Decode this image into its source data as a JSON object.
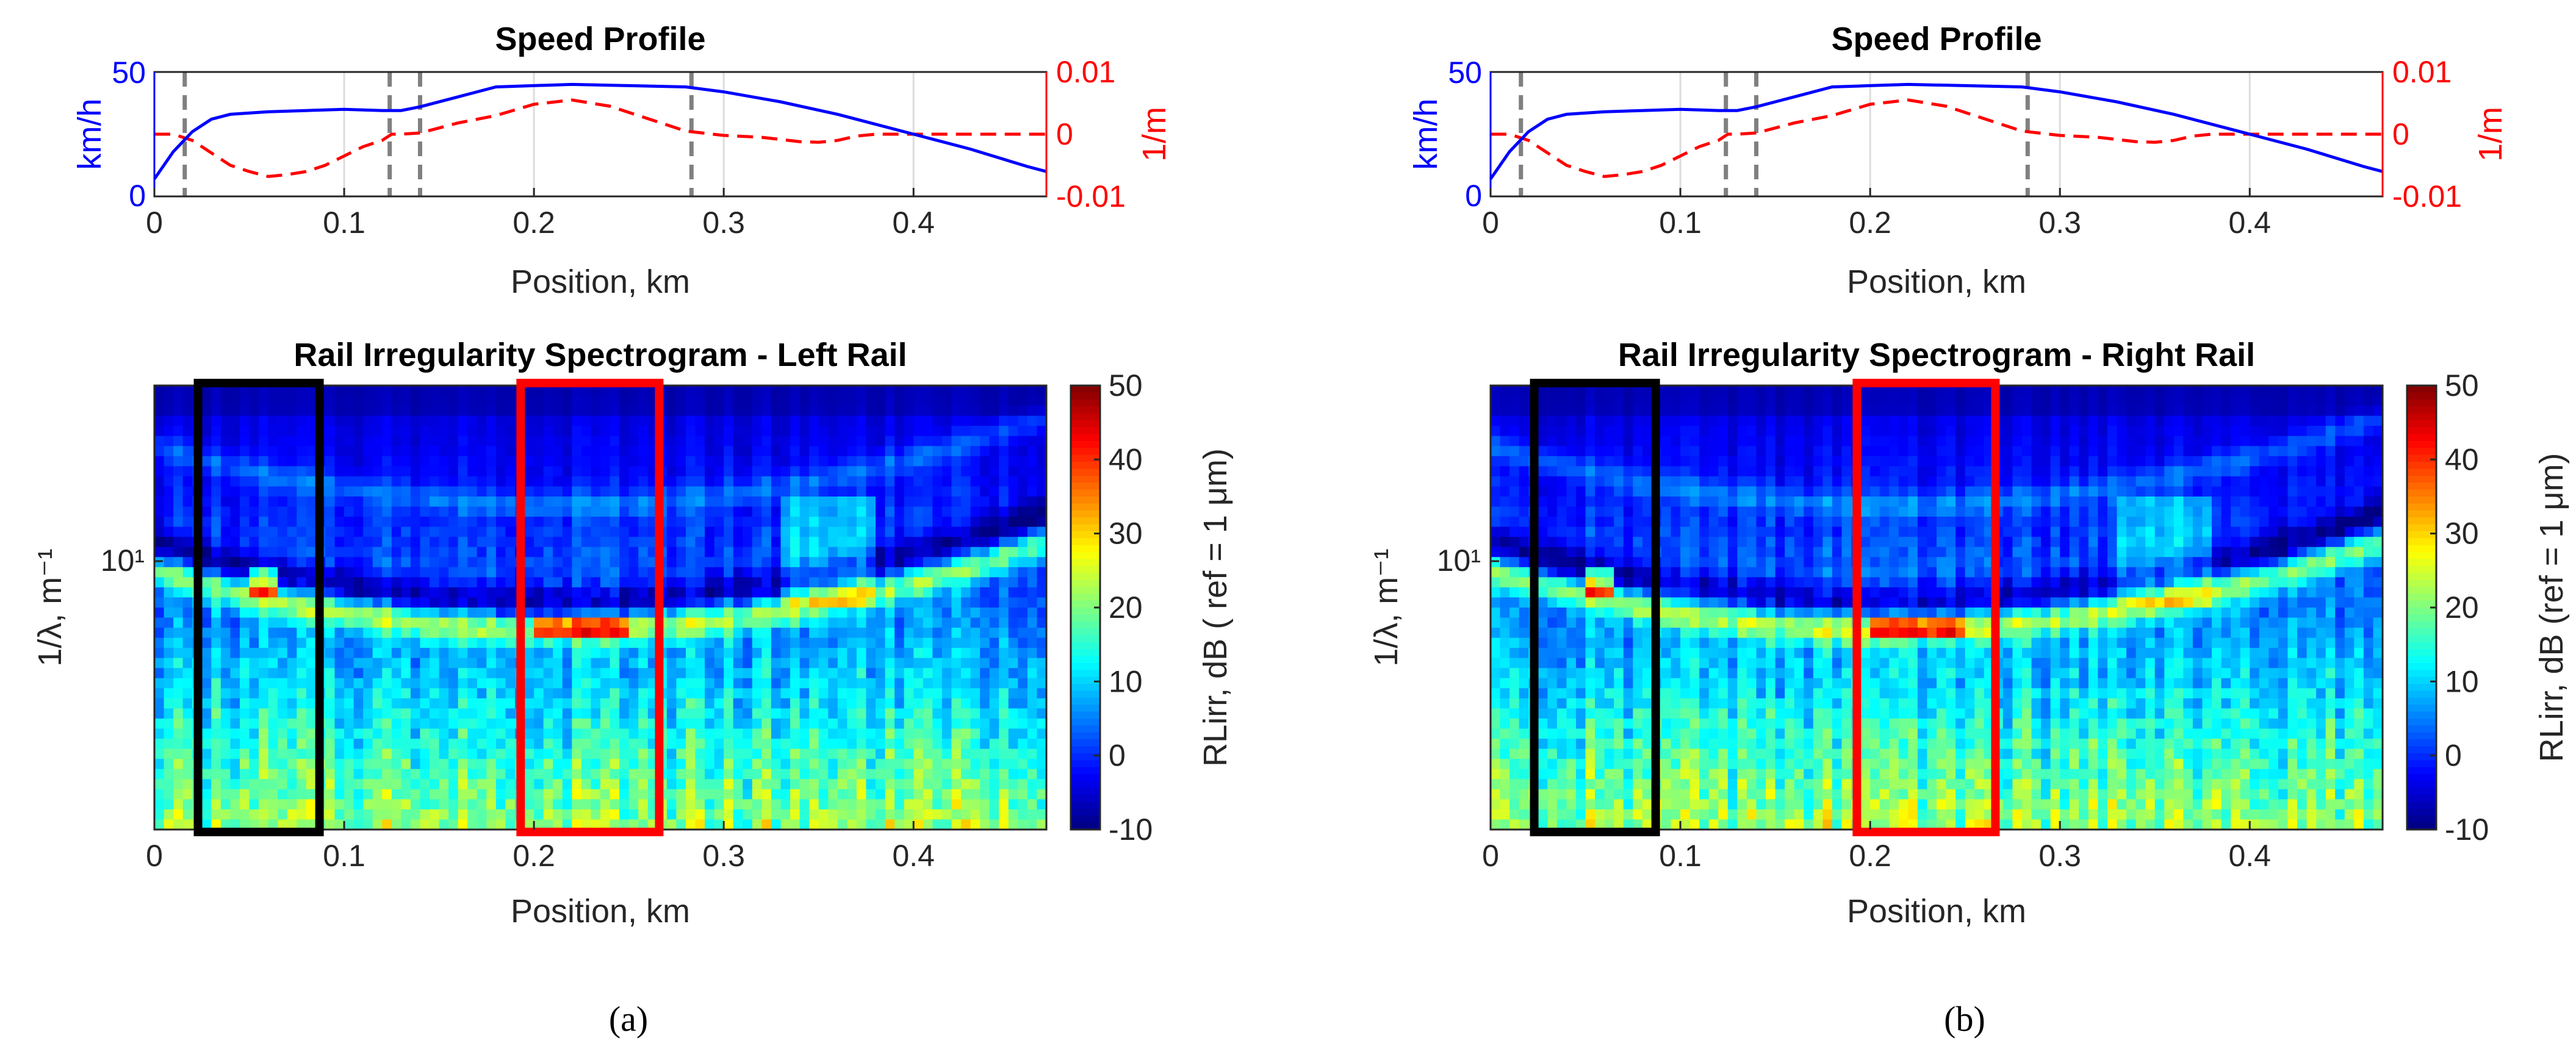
{
  "chart_data": [
    {
      "panel": "a",
      "panel_label": "(a)",
      "speed": {
        "type": "line",
        "title": "Speed Profile",
        "xlabel": "Position, km",
        "ylabel_left": "km/h",
        "ylabel_right": "1/m",
        "xlim": [
          0,
          0.47
        ],
        "ylim_left": [
          0,
          50
        ],
        "ylim_right": [
          -0.01,
          0.01
        ],
        "xticks": [
          "0",
          "0.1",
          "0.2",
          "0.3",
          "0.4"
        ],
        "yticks_left": [
          "0",
          "50"
        ],
        "yticks_right": [
          "-0.01",
          "0",
          "0.01"
        ],
        "grid": "vertical",
        "colors": {
          "speed": "#0000ff",
          "curvature": "#ff0000",
          "markers": "#808080"
        },
        "markers_x": [
          0.016,
          0.124,
          0.14,
          0.283
        ],
        "series": [
          {
            "name": "speed",
            "axis": "left",
            "x": [
              0,
              0.01,
              0.02,
              0.03,
              0.04,
              0.06,
              0.08,
              0.1,
              0.12,
              0.13,
              0.14,
              0.16,
              0.18,
              0.2,
              0.22,
              0.25,
              0.28,
              0.3,
              0.33,
              0.36,
              0.4,
              0.43,
              0.46,
              0.47
            ],
            "y": [
              7,
              18,
              26,
              31,
              33,
              34,
              34.5,
              35,
              34.5,
              34.5,
              36,
              40,
              44,
              44.5,
              45,
              44.5,
              44,
              42,
              38,
              33,
              25,
              19,
              12,
              10
            ]
          },
          {
            "name": "curvature",
            "axis": "right",
            "x": [
              0,
              0.01,
              0.02,
              0.03,
              0.04,
              0.05,
              0.06,
              0.07,
              0.08,
              0.09,
              0.1,
              0.11,
              0.12,
              0.125,
              0.13,
              0.14,
              0.15,
              0.16,
              0.18,
              0.2,
              0.22,
              0.24,
              0.26,
              0.28,
              0.3,
              0.32,
              0.34,
              0.35,
              0.36,
              0.37,
              0.38,
              0.47
            ],
            "y": [
              0,
              0,
              -0.001,
              -0.003,
              -0.005,
              -0.006,
              -0.0068,
              -0.0065,
              -0.006,
              -0.005,
              -0.0035,
              -0.002,
              -0.001,
              0,
              0,
              0.0002,
              0.001,
              0.0018,
              0.003,
              0.0048,
              0.0055,
              0.0045,
              0.0025,
              0.0005,
              -0.0002,
              -0.0005,
              -0.0012,
              -0.0013,
              -0.001,
              -0.0003,
              0,
              0
            ]
          }
        ]
      },
      "spectrogram": {
        "type": "heatmap",
        "title": "Rail Irregularity Spectrogram - Left Rail",
        "xlabel": "Position, km",
        "ylabel": "1/λ, m⁻¹",
        "ytick_label": "10¹",
        "xlim": [
          0,
          0.47
        ],
        "xticks": [
          "0",
          "0.1",
          "0.2",
          "0.3",
          "0.4"
        ],
        "colorbar": {
          "label": "RLirr, dB ( ref = 1 μm)",
          "range": [
            -10,
            50
          ],
          "ticks": [
            "-10",
            "0",
            "10",
            "20",
            "30",
            "40",
            "50"
          ],
          "colormap": "jet"
        },
        "boxes": [
          {
            "color": "#000000",
            "x_range": [
              0.023,
              0.087
            ]
          },
          {
            "color": "#ff0000",
            "x_range": [
              0.193,
              0.266
            ]
          }
        ]
      }
    },
    {
      "panel": "b",
      "panel_label": "(b)",
      "speed": {
        "type": "line",
        "title": "Speed Profile",
        "xlabel": "Position, km",
        "ylabel_left": "km/h",
        "ylabel_right": "1/m",
        "xlim": [
          0,
          0.47
        ],
        "ylim_left": [
          0,
          50
        ],
        "ylim_right": [
          -0.01,
          0.01
        ],
        "xticks": [
          "0",
          "0.1",
          "0.2",
          "0.3",
          "0.4"
        ],
        "yticks_left": [
          "0",
          "50"
        ],
        "yticks_right": [
          "-0.01",
          "0",
          "0.01"
        ],
        "grid": "vertical",
        "colors": {
          "speed": "#0000ff",
          "curvature": "#ff0000",
          "markers": "#808080"
        },
        "markers_x": [
          0.016,
          0.124,
          0.14,
          0.283
        ],
        "series": [
          {
            "name": "speed",
            "axis": "left",
            "x": [
              0,
              0.01,
              0.02,
              0.03,
              0.04,
              0.06,
              0.08,
              0.1,
              0.12,
              0.13,
              0.14,
              0.16,
              0.18,
              0.2,
              0.22,
              0.25,
              0.28,
              0.3,
              0.33,
              0.36,
              0.4,
              0.43,
              0.46,
              0.47
            ],
            "y": [
              7,
              18,
              26,
              31,
              33,
              34,
              34.5,
              35,
              34.5,
              34.5,
              36,
              40,
              44,
              44.5,
              45,
              44.5,
              44,
              42,
              38,
              33,
              25,
              19,
              12,
              10
            ]
          },
          {
            "name": "curvature",
            "axis": "right",
            "x": [
              0,
              0.01,
              0.02,
              0.03,
              0.04,
              0.05,
              0.06,
              0.07,
              0.08,
              0.09,
              0.1,
              0.11,
              0.12,
              0.125,
              0.13,
              0.14,
              0.15,
              0.16,
              0.18,
              0.2,
              0.22,
              0.24,
              0.26,
              0.28,
              0.3,
              0.32,
              0.34,
              0.35,
              0.36,
              0.37,
              0.38,
              0.47
            ],
            "y": [
              0,
              0,
              -0.001,
              -0.003,
              -0.005,
              -0.006,
              -0.0068,
              -0.0065,
              -0.006,
              -0.005,
              -0.0035,
              -0.002,
              -0.001,
              0,
              0,
              0.0002,
              0.001,
              0.0018,
              0.003,
              0.0048,
              0.0055,
              0.0045,
              0.0025,
              0.0005,
              -0.0002,
              -0.0005,
              -0.0012,
              -0.0013,
              -0.001,
              -0.0003,
              0,
              0
            ]
          }
        ]
      },
      "spectrogram": {
        "type": "heatmap",
        "title": "Rail Irregularity Spectrogram - Right Rail",
        "xlabel": "Position, km",
        "ylabel": "1/λ, m⁻¹",
        "ytick_label": "10¹",
        "xlim": [
          0,
          0.47
        ],
        "xticks": [
          "0",
          "0.1",
          "0.2",
          "0.3",
          "0.4"
        ],
        "colorbar": {
          "label": "RLirr, dB (ref = 1 μm)",
          "range": [
            -10,
            50
          ],
          "ticks": [
            "-10",
            "0",
            "10",
            "20",
            "30",
            "40",
            "50"
          ],
          "colormap": "jet"
        },
        "boxes": [
          {
            "color": "#000000",
            "x_range": [
              0.023,
              0.087
            ]
          },
          {
            "color": "#ff0000",
            "x_range": [
              0.193,
              0.266
            ]
          }
        ]
      }
    }
  ]
}
